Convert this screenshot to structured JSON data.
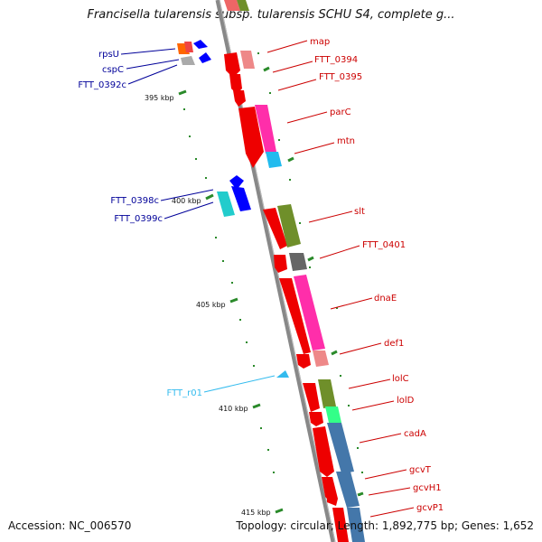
{
  "header": {
    "title": "Francisella tularensis subsp. tularensis SCHU S4, complete g..."
  },
  "footer": {
    "accession": "Accession: NC_006570",
    "summary": "Topology: circular; Length: 1,892,775 bp; Genes: 1,652"
  },
  "map": {
    "ticks": [
      "395 kbp",
      "400 kbp",
      "405 kbp",
      "410 kbp",
      "415 kbp"
    ],
    "gene_labels_right": [
      "map",
      "FTT_0394",
      "FTT_0395",
      "parC",
      "mtn",
      "slt",
      "FTT_0401",
      "dnaE",
      "def1",
      "lolC",
      "lolD",
      "cadA",
      "gcvT",
      "gcvH1",
      "gcvP1"
    ],
    "gene_labels_left": [
      "rpsU",
      "cspC",
      "FTT_0392c",
      "FTT_0398c",
      "FTT_0399c"
    ],
    "rna_labels": [
      "FTT_r01"
    ],
    "colors": {
      "cds_forward": "#ff0000",
      "cds_reverse": "#0000ff",
      "left_label": "#000099",
      "right_label": "#cc0000",
      "rna_label": "#33bbee",
      "tick_mark": "#2a8a2a",
      "backbone": "#888888"
    }
  }
}
